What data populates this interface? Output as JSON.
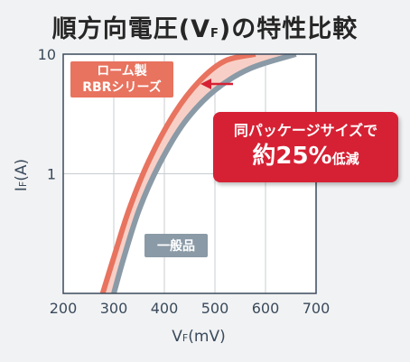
{
  "title": {
    "main": "順方向電圧(V",
    "sub": "F",
    "tail": ")の特性比較"
  },
  "labels": {
    "rohm_line1": "ローム製",
    "rohm_line2": "RBRシリーズ",
    "general": "一般品",
    "callout_line1": "同パッケージサイズで",
    "callout_big": "約25%",
    "callout_small": "低減"
  },
  "colors": {
    "rohm": "#e8735f",
    "general": "#8a9aa6",
    "band": "#f8cfc6",
    "callout": "#d62134",
    "axis": "#3a4a5c"
  },
  "chart_data": {
    "type": "line",
    "xlabel": "VF(mV)",
    "ylabel": "IF(A)",
    "x_ticks": [
      "200",
      "300",
      "400",
      "500",
      "600",
      "700"
    ],
    "y_ticks": [
      "1",
      "10"
    ],
    "xlim": [
      200,
      700
    ],
    "ylim": [
      0.1,
      10
    ],
    "y_scale": "log",
    "grid": true,
    "series": [
      {
        "name": "ローム製 RBRシリーズ",
        "x": [
          278,
          300,
          330,
          370,
          420,
          470,
          520,
          580
        ],
        "y": [
          0.1,
          0.2,
          0.5,
          1.3,
          3.2,
          6.0,
          8.8,
          10.0
        ]
      },
      {
        "name": "一般品",
        "x": [
          300,
          320,
          350,
          390,
          440,
          500,
          570,
          660
        ],
        "y": [
          0.1,
          0.2,
          0.5,
          1.2,
          2.7,
          5.0,
          7.6,
          10.0
        ]
      }
    ]
  }
}
